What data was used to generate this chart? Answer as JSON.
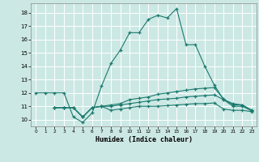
{
  "xlabel": "Humidex (Indice chaleur)",
  "bg_color": "#cce8e4",
  "line_color": "#1a7a6e",
  "grid_color": "#ffffff",
  "xlim": [
    -0.5,
    23.5
  ],
  "ylim": [
    9.5,
    18.7
  ],
  "yticks": [
    10,
    11,
    12,
    13,
    14,
    15,
    16,
    17,
    18
  ],
  "xticks": [
    0,
    1,
    2,
    3,
    4,
    5,
    6,
    7,
    8,
    9,
    10,
    11,
    12,
    13,
    14,
    15,
    16,
    17,
    18,
    19,
    20,
    21,
    22,
    23
  ],
  "lines": [
    {
      "x": [
        0,
        1,
        2,
        3,
        4,
        5,
        6,
        7,
        8,
        9,
        10,
        11,
        12,
        13,
        14,
        15,
        16,
        17,
        18,
        19,
        20,
        21,
        22,
        23
      ],
      "y": [
        12,
        12,
        12,
        12,
        10.2,
        9.8,
        10.5,
        12.5,
        14.2,
        15.2,
        16.5,
        16.5,
        17.5,
        17.8,
        17.6,
        18.3,
        15.6,
        15.6,
        14.0,
        12.6,
        11.5,
        11.2,
        11.1,
        10.7
      ]
    },
    {
      "x": [
        2,
        3,
        4,
        5,
        6,
        7,
        8,
        9,
        10,
        11,
        12,
        13,
        14,
        15,
        16,
        17,
        18,
        19,
        20,
        21,
        22,
        23
      ],
      "y": [
        10.9,
        10.9,
        10.9,
        10.2,
        10.9,
        11.0,
        11.1,
        11.2,
        11.5,
        11.6,
        11.7,
        11.9,
        12.0,
        12.1,
        12.2,
        12.3,
        12.35,
        12.4,
        11.55,
        11.1,
        11.1,
        10.7
      ]
    },
    {
      "x": [
        2,
        3,
        4,
        5,
        6,
        7,
        8,
        9,
        10,
        11,
        12,
        13,
        14,
        15,
        16,
        17,
        18,
        19,
        20,
        21,
        22,
        23
      ],
      "y": [
        10.9,
        10.9,
        10.9,
        10.2,
        10.9,
        11.0,
        11.0,
        11.1,
        11.2,
        11.3,
        11.4,
        11.5,
        11.55,
        11.6,
        11.7,
        11.75,
        11.8,
        11.85,
        11.5,
        11.0,
        11.0,
        10.65
      ]
    },
    {
      "x": [
        2,
        3,
        4,
        5,
        6,
        7,
        8,
        9,
        10,
        11,
        12,
        13,
        14,
        15,
        16,
        17,
        18,
        19,
        20,
        21,
        22,
        23
      ],
      "y": [
        10.9,
        10.9,
        10.9,
        10.2,
        10.9,
        11.0,
        10.7,
        10.8,
        10.9,
        11.0,
        11.0,
        11.0,
        11.05,
        11.1,
        11.15,
        11.2,
        11.2,
        11.25,
        10.8,
        10.7,
        10.7,
        10.6
      ]
    }
  ]
}
